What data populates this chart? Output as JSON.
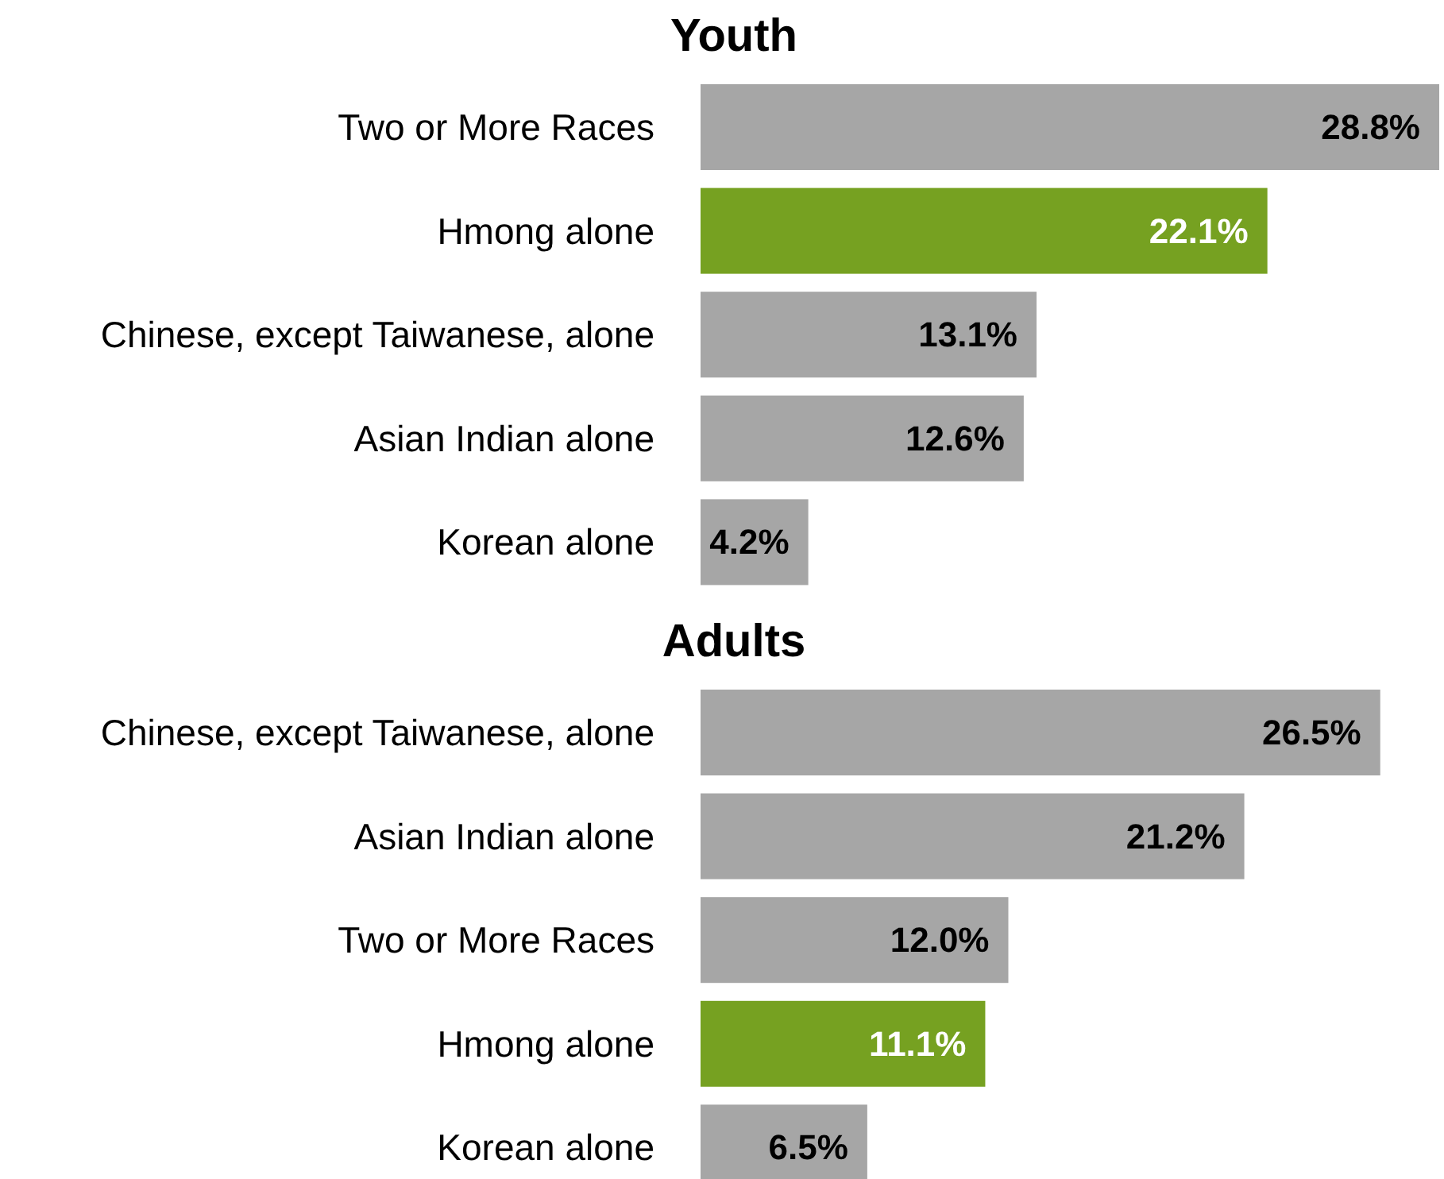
{
  "chart_data": [
    {
      "type": "bar",
      "orientation": "horizontal",
      "title": "Youth",
      "categories": [
        "Two or More Races",
        "Hmong alone",
        "Chinese, except Taiwanese, alone",
        "Asian Indian alone",
        "Korean alone"
      ],
      "values": [
        28.8,
        22.1,
        13.1,
        12.6,
        4.2
      ],
      "value_labels": [
        "28.8%",
        "22.1%",
        "13.1%",
        "12.6%",
        "4.2%"
      ],
      "colors": [
        "#a6a6a6",
        "#76a121",
        "#a6a6a6",
        "#a6a6a6",
        "#a6a6a6"
      ]
    },
    {
      "type": "bar",
      "orientation": "horizontal",
      "title": "Adults",
      "categories": [
        "Chinese, except Taiwanese, alone",
        "Asian Indian alone",
        "Two or More Races",
        "Hmong alone",
        "Korean alone"
      ],
      "values": [
        26.5,
        21.2,
        12.0,
        11.1,
        6.5
      ],
      "value_labels": [
        "26.5%",
        "21.2%",
        "12.0%",
        "11.1%",
        "6.5%"
      ],
      "colors": [
        "#a6a6a6",
        "#a6a6a6",
        "#a6a6a6",
        "#76a121",
        "#a6a6a6"
      ]
    }
  ]
}
